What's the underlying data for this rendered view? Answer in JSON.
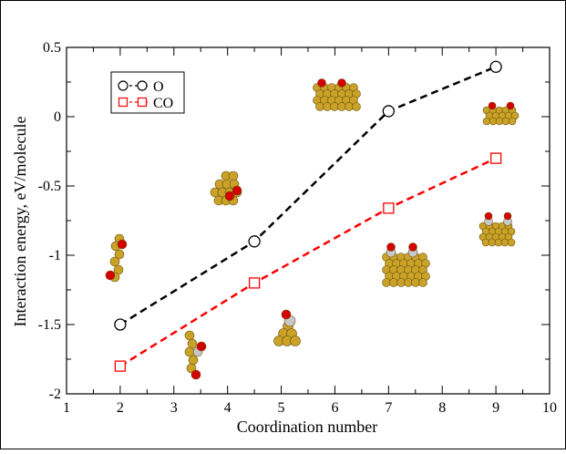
{
  "chart_data": {
    "type": "line",
    "xlabel": "Coordination number",
    "ylabel": "Interaction energy, eV/molecule",
    "xlim": [
      1,
      10
    ],
    "ylim": [
      -2,
      0.5
    ],
    "x_ticks": [
      "1",
      "2",
      "3",
      "4",
      "5",
      "6",
      "7",
      "8",
      "9",
      "10"
    ],
    "y_ticks": [
      "0.5",
      "0",
      "-0.5",
      "-1",
      "-1.5",
      "-2"
    ],
    "legend_position": "top-left",
    "series": [
      {
        "name": "O",
        "color": "#000000",
        "marker": "circle",
        "x": [
          2,
          4.5,
          7,
          9
        ],
        "y": [
          -1.5,
          -0.9,
          0.04,
          0.36
        ]
      },
      {
        "name": "CO",
        "color": "#ff0000",
        "marker": "square",
        "x": [
          2,
          4.5,
          7,
          9
        ],
        "y": [
          -1.8,
          -1.2,
          -0.66,
          -0.3
        ]
      }
    ],
    "colors": {
      "gold_atom": "#c9a227",
      "oxygen_atom": "#d40000",
      "carbon_atom": "#c8c8c8"
    }
  }
}
